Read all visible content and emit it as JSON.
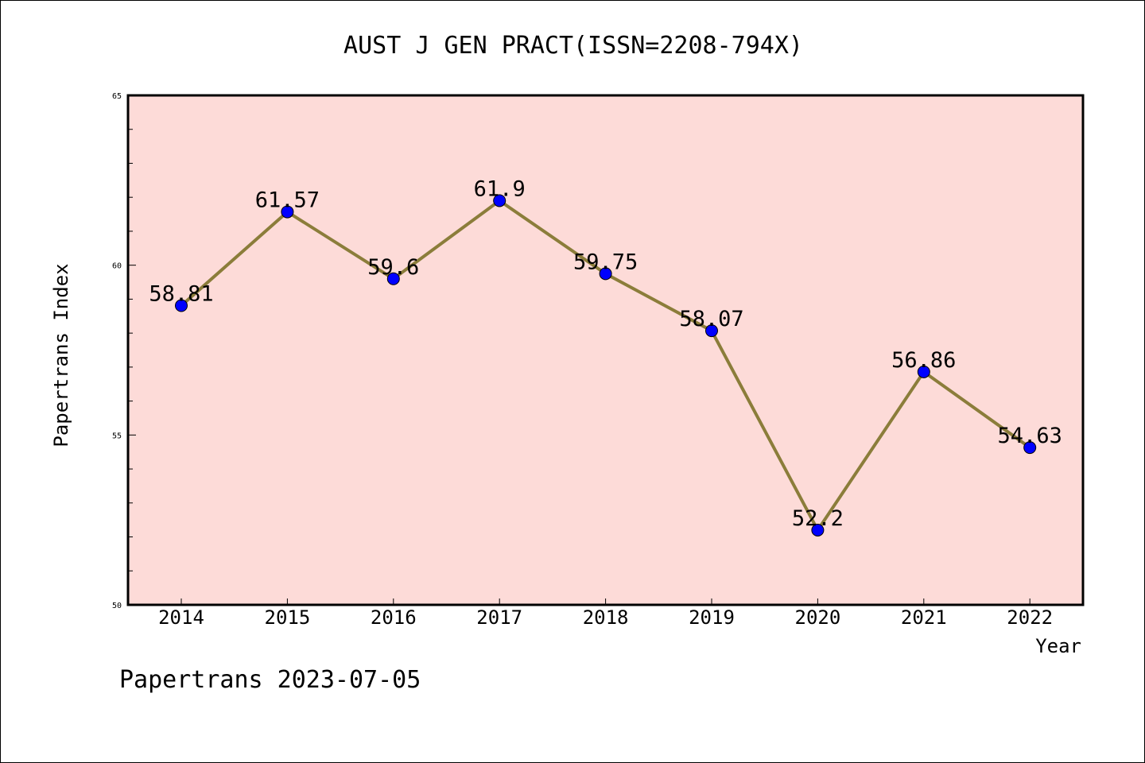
{
  "chart_data": {
    "type": "line",
    "title": "AUST J GEN PRACT(ISSN=2208-794X)",
    "xlabel": "Year",
    "ylabel": "Papertrans Index",
    "categories": [
      "2014",
      "2015",
      "2016",
      "2017",
      "2018",
      "2019",
      "2020",
      "2021",
      "2022"
    ],
    "values": [
      58.81,
      61.57,
      59.6,
      61.9,
      59.75,
      58.07,
      52.2,
      56.86,
      54.63
    ],
    "data_labels": [
      "58.81",
      "61.57",
      "59.6",
      "61.9",
      "59.75",
      "58.07",
      "52.2",
      "56.86",
      "54.63"
    ],
    "ylim": [
      50,
      65
    ],
    "yticks": [
      "50",
      "55",
      "60",
      "65"
    ],
    "grid": false,
    "legend": "none",
    "colors": {
      "plot_background": "#fddbd8",
      "line": "#8b7d3a",
      "marker": "#0000ff"
    }
  },
  "footer": {
    "text": "Papertrans 2023-07-05"
  }
}
